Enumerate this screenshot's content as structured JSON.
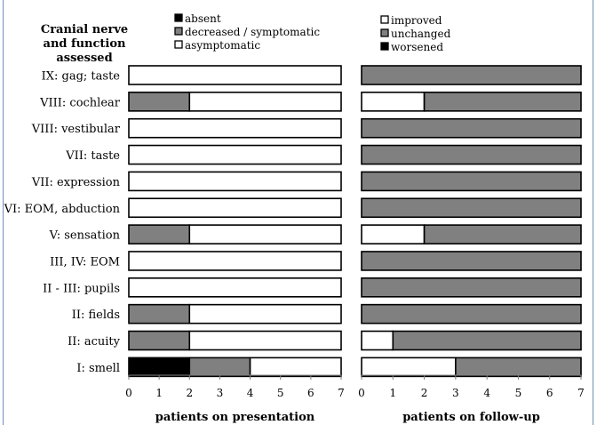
{
  "figure": {
    "left_header": [
      "Cranial nerve",
      "and function",
      "assessed"
    ]
  },
  "chart_data": [
    {
      "type": "bar",
      "orientation": "horizontal",
      "stacked": true,
      "xlabel": "patients on presentation",
      "xlim": [
        0,
        7
      ],
      "xticks": [
        "0",
        "1",
        "2",
        "3",
        "4",
        "5",
        "6",
        "7"
      ],
      "grid": false,
      "legend_position": "top",
      "categories": [
        "IX: gag; taste",
        "VIII: cochlear",
        "VIII: vestibular",
        "VII: taste",
        "VII: expression",
        "VI: EOM, abduction",
        "V: sensation",
        "III, IV: EOM",
        "II - III: pupils",
        "II: fields",
        "II: acuity",
        "I: smell"
      ],
      "series": [
        {
          "name": "absent",
          "color": "#000000",
          "values": [
            0,
            0,
            0,
            0,
            0,
            0,
            0,
            0,
            0,
            0,
            0,
            2
          ]
        },
        {
          "name": "decreased / symptomatic",
          "color": "#808080",
          "values": [
            0,
            2,
            0,
            0,
            0,
            0,
            2,
            0,
            0,
            2,
            2,
            2
          ]
        },
        {
          "name": "asymptomatic",
          "color": "#ffffff",
          "values": [
            7,
            5,
            7,
            7,
            7,
            7,
            5,
            7,
            7,
            5,
            5,
            3
          ]
        }
      ]
    },
    {
      "type": "bar",
      "orientation": "horizontal",
      "stacked": true,
      "xlabel": "patients on follow-up",
      "xlim": [
        0,
        7
      ],
      "xticks": [
        "0",
        "1",
        "2",
        "3",
        "4",
        "5",
        "6",
        "7"
      ],
      "grid": false,
      "legend_position": "top",
      "categories": [
        "IX: gag; taste",
        "VIII: cochlear",
        "VIII: vestibular",
        "VII: taste",
        "VII: expression",
        "VI: EOM, abduction",
        "V: sensation",
        "III, IV: EOM",
        "II - III: pupils",
        "II: fields",
        "II: acuity",
        "I: smell"
      ],
      "series": [
        {
          "name": "improved",
          "color": "#ffffff",
          "values": [
            0,
            2,
            0,
            0,
            0,
            0,
            2,
            0,
            0,
            0,
            1,
            3
          ]
        },
        {
          "name": "unchanged",
          "color": "#808080",
          "values": [
            7,
            5,
            7,
            7,
            7,
            7,
            5,
            7,
            7,
            7,
            6,
            4
          ]
        },
        {
          "name": "worsened",
          "color": "#000000",
          "values": [
            0,
            0,
            0,
            0,
            0,
            0,
            0,
            0,
            0,
            0,
            0,
            0
          ]
        }
      ]
    }
  ]
}
